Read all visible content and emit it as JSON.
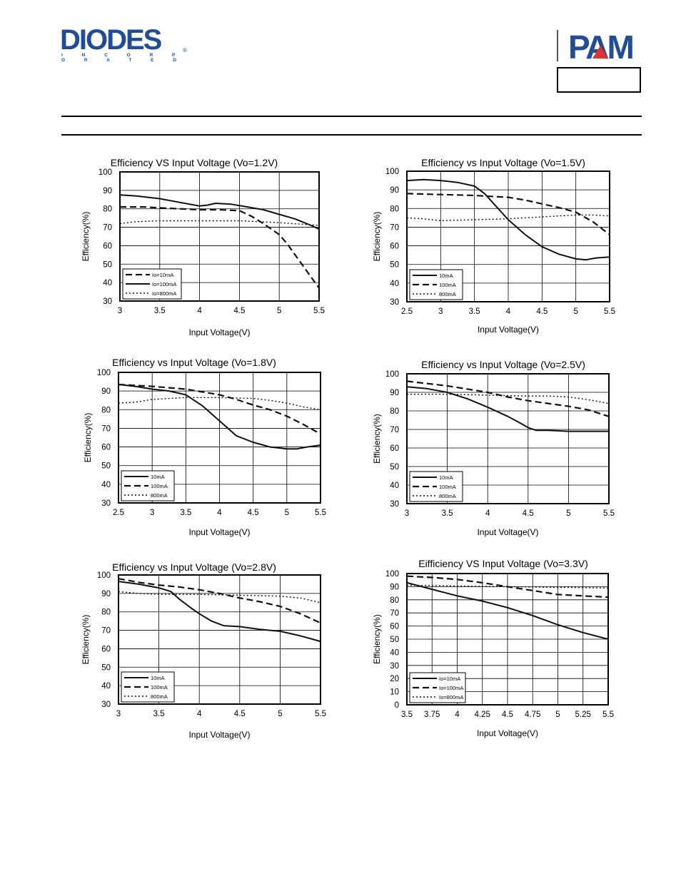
{
  "header": {
    "left_logo": {
      "name": "DIODES",
      "sub": "I N C O R P O R A T E D",
      "reg": "®",
      "color": "#1f4d9c"
    },
    "right_logo": {
      "name": "PAM",
      "color_blue": "#1f4d9c",
      "color_red": "#e03030"
    }
  },
  "chart_data": [
    {
      "type": "line",
      "title": "Efficiency VS Input Voltage (Vo=1.2V)",
      "xlabel": "Input Voltage(V)",
      "ylabel": "Efficiency(%)",
      "xlim": [
        3,
        5.5
      ],
      "ylim": [
        30,
        100
      ],
      "xticks": [
        3,
        3.5,
        4,
        4.5,
        5,
        5.5
      ],
      "xtick_labels": [
        "3",
        "3.5",
        "4",
        "4.5",
        "5",
        "5.5"
      ],
      "yticks": [
        30,
        40,
        50,
        60,
        70,
        80,
        90,
        100
      ],
      "grid": true,
      "legend": "bottom-left",
      "series": [
        {
          "name": "Io=10mA",
          "style": "dash",
          "x": [
            3,
            3.3,
            3.5,
            3.75,
            4,
            4.25,
            4.5,
            4.65,
            4.8,
            5,
            5.1,
            5.2,
            5.3,
            5.4,
            5.5
          ],
          "y": [
            81,
            81,
            80.5,
            80,
            79.5,
            79.5,
            79,
            76,
            72,
            66,
            61,
            55,
            49,
            43,
            37
          ]
        },
        {
          "name": "Io=100mA",
          "style": "solid",
          "x": [
            3,
            3.2,
            3.5,
            3.75,
            4,
            4.1,
            4.2,
            4.4,
            4.6,
            4.8,
            5,
            5.2,
            5.4,
            5.5
          ],
          "y": [
            87.5,
            87,
            85.5,
            83.5,
            81.5,
            82,
            83,
            82.5,
            81,
            79.5,
            77,
            74.5,
            71,
            69
          ]
        },
        {
          "name": "Io=800mA",
          "style": "dot",
          "x": [
            3,
            3.2,
            3.5,
            3.75,
            4,
            4.5,
            5,
            5.5
          ],
          "y": [
            72,
            73,
            73.5,
            73.5,
            73.5,
            73.5,
            72.5,
            71
          ]
        }
      ]
    },
    {
      "type": "line",
      "title": "Efficiency vs Input Voltage (Vo=1.5V)",
      "xlabel": "Input Voltage(V)",
      "ylabel": "Efficiency(%)",
      "xlim": [
        2.5,
        5.5
      ],
      "ylim": [
        30,
        100
      ],
      "xticks": [
        2.5,
        3,
        3.5,
        4,
        4.5,
        5,
        5.5
      ],
      "xtick_labels": [
        "2.5",
        "3",
        "3.5",
        "4",
        "4.5",
        "5",
        "5.5"
      ],
      "yticks": [
        30,
        40,
        50,
        60,
        70,
        80,
        90,
        100
      ],
      "grid": true,
      "legend": "bottom-left",
      "series": [
        {
          "name": "10mA",
          "style": "solid",
          "x": [
            2.5,
            2.75,
            3,
            3.25,
            3.5,
            3.65,
            3.75,
            3.85,
            4,
            4.25,
            4.5,
            4.75,
            5,
            5.15,
            5.3,
            5.5
          ],
          "y": [
            95,
            95.5,
            95,
            94,
            92,
            88,
            84,
            80,
            74,
            66,
            59.5,
            55.5,
            53,
            52.5,
            53.5,
            54
          ]
        },
        {
          "name": "100mA",
          "style": "dash",
          "x": [
            2.5,
            3,
            3.5,
            3.75,
            4,
            4.25,
            4.5,
            4.75,
            5,
            5.25,
            5.5
          ],
          "y": [
            88,
            87.5,
            87,
            86.5,
            86,
            84.5,
            82.5,
            80.5,
            78,
            73,
            66
          ]
        },
        {
          "name": "800mA",
          "style": "dot",
          "x": [
            2.5,
            2.75,
            3,
            3.5,
            4,
            4.5,
            5,
            5.25,
            5.5
          ],
          "y": [
            75,
            74.5,
            73.5,
            74,
            74.5,
            75.5,
            76.5,
            76.5,
            76
          ]
        }
      ]
    },
    {
      "type": "line",
      "title": "Efficiency vs Input Voltage (Vo=1.8V)",
      "xlabel": "Input Voltage(V)",
      "ylabel": "Efficiency(%)",
      "xlim": [
        2.5,
        5.5
      ],
      "ylim": [
        30,
        100
      ],
      "xticks": [
        2.5,
        3,
        3.5,
        4,
        4.5,
        5,
        5.5
      ],
      "xtick_labels": [
        "2.5",
        "3",
        "3.5",
        "4",
        "4.5",
        "5",
        "5.5"
      ],
      "yticks": [
        30,
        40,
        50,
        60,
        70,
        80,
        90,
        100
      ],
      "grid": true,
      "legend": "bottom-left",
      "series": [
        {
          "name": "10mA",
          "style": "solid",
          "x": [
            2.5,
            2.75,
            3,
            3.25,
            3.5,
            3.75,
            4,
            4.25,
            4.5,
            4.75,
            5,
            5.15,
            5.3,
            5.5
          ],
          "y": [
            93.5,
            92.5,
            91,
            90,
            88,
            82,
            74,
            66,
            62.5,
            60,
            59,
            59,
            60,
            61
          ]
        },
        {
          "name": "100mA",
          "style": "dash",
          "x": [
            2.5,
            3,
            3.5,
            4,
            4.25,
            4.5,
            4.75,
            5,
            5.25,
            5.5
          ],
          "y": [
            93.5,
            92.5,
            91,
            88,
            85.5,
            82.5,
            80,
            76.5,
            72,
            67
          ]
        },
        {
          "name": "800mA",
          "style": "dot",
          "x": [
            2.5,
            2.75,
            3,
            3.25,
            3.5,
            4,
            4.5,
            4.75,
            5,
            5.25,
            5.5
          ],
          "y": [
            83.5,
            84,
            85.5,
            86,
            86.5,
            86.5,
            86,
            85,
            83.5,
            81.5,
            80
          ]
        }
      ]
    },
    {
      "type": "line",
      "title": "Efficiency vs Input Voltage (Vo=2.5V)",
      "xlabel": "Input Voltage(V)",
      "ylabel": "Efficiency(%)",
      "xlim": [
        3,
        5.5
      ],
      "ylim": [
        30,
        100
      ],
      "xticks": [
        3,
        3.5,
        4,
        4.5,
        5,
        5.5
      ],
      "xtick_labels": [
        "3",
        "3.5",
        "4",
        "4.5",
        "5",
        "5.5"
      ],
      "yticks": [
        30,
        40,
        50,
        60,
        70,
        80,
        90,
        100
      ],
      "grid": true,
      "legend": "bottom-left",
      "series": [
        {
          "name": "10mA",
          "style": "solid",
          "x": [
            3,
            3.25,
            3.5,
            3.75,
            4,
            4.25,
            4.4,
            4.5,
            4.6,
            4.75,
            5,
            5.25,
            5.5
          ],
          "y": [
            93,
            92,
            90,
            86.5,
            82,
            77,
            73.5,
            71,
            69.5,
            69.5,
            69,
            69,
            69
          ]
        },
        {
          "name": "100mA",
          "style": "dash",
          "x": [
            3,
            3.5,
            4,
            4.25,
            4.5,
            4.75,
            5,
            5.25,
            5.5
          ],
          "y": [
            96,
            93.5,
            90,
            87.5,
            85.5,
            84,
            82.5,
            80.5,
            77
          ]
        },
        {
          "name": "800mA",
          "style": "dot",
          "x": [
            3,
            3.5,
            4,
            4.5,
            4.75,
            5,
            5.25,
            5.5
          ],
          "y": [
            89,
            89,
            88.5,
            88,
            88,
            87.5,
            86,
            84
          ]
        }
      ]
    },
    {
      "type": "line",
      "title": "Efficiency vs Input Voltage (Vo=2.8V)",
      "xlabel": "Input Voltage(V)",
      "ylabel": "Efficiency(%)",
      "xlim": [
        3,
        5.5
      ],
      "ylim": [
        30,
        100
      ],
      "xticks": [
        3,
        3.5,
        4,
        4.5,
        5,
        5.5
      ],
      "xtick_labels": [
        "3",
        "3.5",
        "4",
        "4.5",
        "5",
        "5.5"
      ],
      "yticks": [
        30,
        40,
        50,
        60,
        70,
        80,
        90,
        100
      ],
      "grid": true,
      "legend": "bottom-left",
      "series": [
        {
          "name": "10mA",
          "style": "solid",
          "x": [
            3,
            3.25,
            3.5,
            3.65,
            3.75,
            3.9,
            4,
            4.15,
            4.3,
            4.5,
            4.75,
            5,
            5.25,
            5.5
          ],
          "y": [
            96.5,
            95,
            93,
            91,
            87,
            82,
            79,
            75,
            72.5,
            72,
            70.5,
            69.5,
            67,
            64
          ]
        },
        {
          "name": "100mA",
          "style": "dash",
          "x": [
            3,
            3.25,
            3.5,
            3.75,
            4,
            4.25,
            4.5,
            4.75,
            5,
            5.25,
            5.5
          ],
          "y": [
            98,
            96,
            94.5,
            93.5,
            92,
            90,
            87.5,
            85.5,
            83,
            79,
            74
          ]
        },
        {
          "name": "800mA",
          "style": "dot",
          "x": [
            3,
            3.25,
            3.5,
            4,
            4.5,
            5,
            5.25,
            5.5
          ],
          "y": [
            91,
            90,
            89.5,
            89.5,
            89,
            88.5,
            87.5,
            85
          ]
        }
      ]
    },
    {
      "type": "line",
      "title": "Eifficiency VS Input Voltage (Vo=3.3V)",
      "xlabel": "Input Voltage(V)",
      "ylabel": "Efficiency(%)",
      "xlim": [
        3.5,
        5.5
      ],
      "ylim": [
        0,
        100
      ],
      "xticks": [
        3.5,
        3.75,
        4,
        4.25,
        4.5,
        4.75,
        5,
        5.25,
        5.5
      ],
      "xtick_labels": [
        "3.5",
        "3.75",
        "4",
        "4.25",
        "4.5",
        "4.75",
        "5",
        "5.25",
        "5.5"
      ],
      "yticks": [
        0,
        10,
        20,
        30,
        40,
        50,
        60,
        70,
        80,
        90,
        100
      ],
      "grid": true,
      "legend": "bottom-left",
      "series": [
        {
          "name": "Io=10mA",
          "style": "solid",
          "x": [
            3.5,
            3.75,
            4,
            4.25,
            4.5,
            4.75,
            5,
            5.25,
            5.5
          ],
          "y": [
            93,
            88,
            83,
            79,
            74,
            68,
            61,
            55,
            50
          ]
        },
        {
          "name": "Io=100mA",
          "style": "dash",
          "x": [
            3.5,
            3.75,
            4,
            4.25,
            4.5,
            4.75,
            5,
            5.25,
            5.5
          ],
          "y": [
            98,
            97,
            95.5,
            93,
            90,
            87,
            84,
            83,
            82
          ]
        },
        {
          "name": "Io=800mA",
          "style": "dot",
          "x": [
            3.5,
            3.75,
            4,
            4.5,
            5,
            5.5
          ],
          "y": [
            91,
            91,
            90.5,
            90,
            89.5,
            89
          ]
        }
      ]
    }
  ]
}
